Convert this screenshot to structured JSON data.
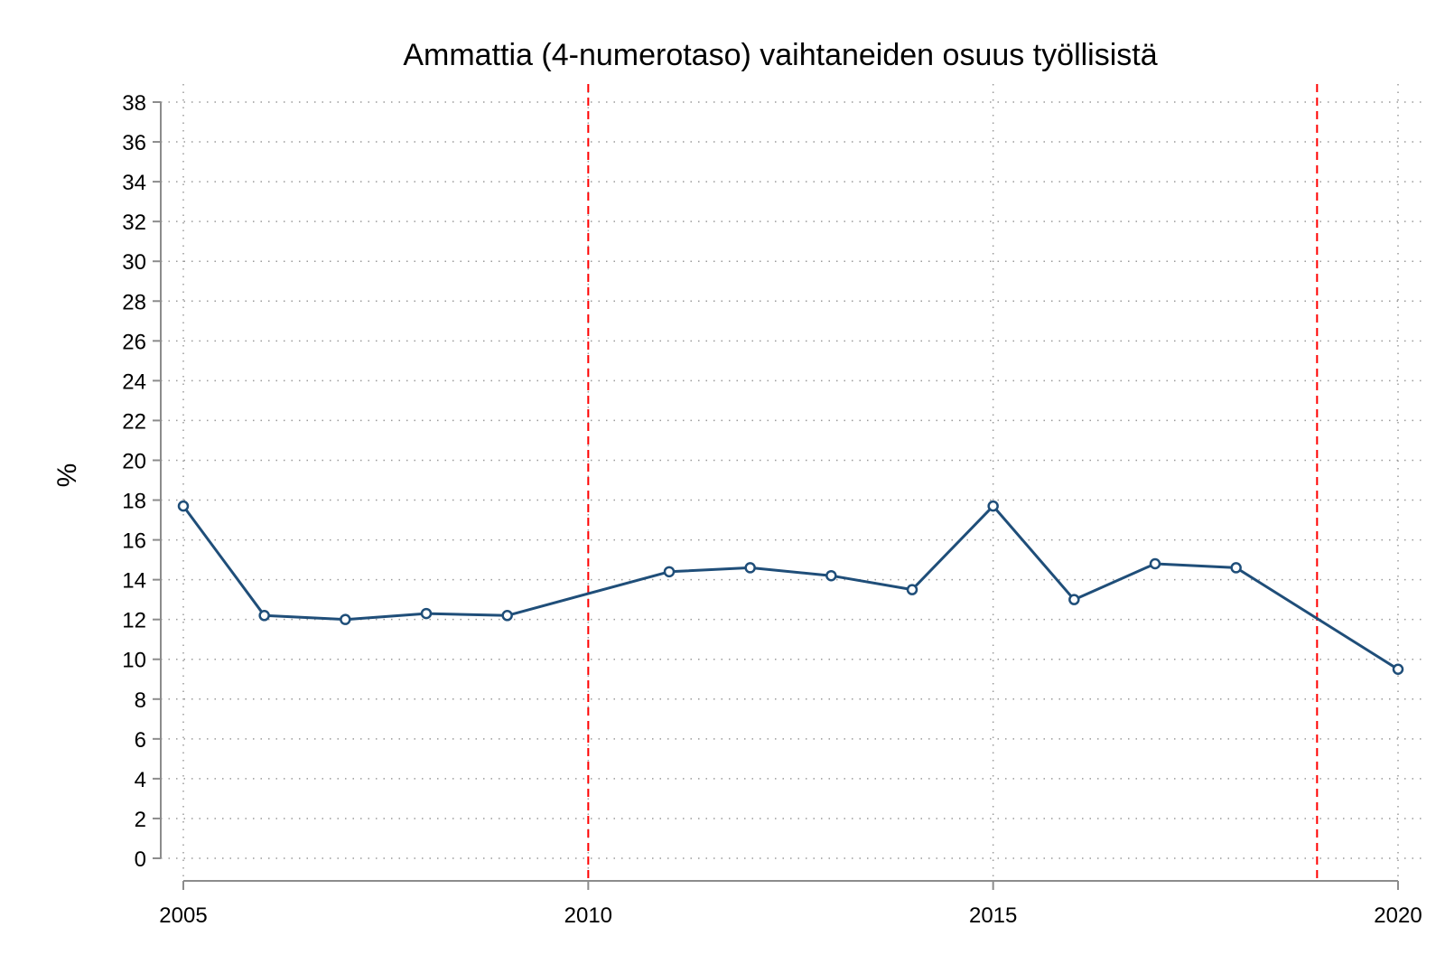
{
  "chart_data": {
    "type": "line",
    "title": "Ammattia (4-numerotaso) vaihtaneiden osuus työllisistä",
    "xlabel": "",
    "ylabel": "%",
    "xlim": [
      2005,
      2020
    ],
    "ylim": [
      0,
      38
    ],
    "x_ticks": [
      2005,
      2010,
      2015,
      2020
    ],
    "y_ticks": [
      0,
      2,
      4,
      6,
      8,
      10,
      12,
      14,
      16,
      18,
      20,
      22,
      24,
      26,
      28,
      30,
      32,
      34,
      36,
      38
    ],
    "grid": true,
    "legend": "none",
    "series": [
      {
        "x": [
          2005,
          2006,
          2007,
          2008,
          2009,
          2011,
          2012,
          2013,
          2014,
          2015,
          2016,
          2017,
          2018,
          2020
        ],
        "values": [
          17.7,
          12.2,
          12.0,
          12.3,
          12.2,
          14.4,
          14.6,
          14.2,
          13.5,
          17.7,
          13.0,
          14.8,
          14.6,
          9.5
        ],
        "color": "#1f4e79"
      }
    ],
    "reference_lines": [
      {
        "x": 2010,
        "color": "#ff0000",
        "style": "dashed"
      },
      {
        "x": 2019,
        "color": "#ff0000",
        "style": "dashed"
      }
    ]
  }
}
